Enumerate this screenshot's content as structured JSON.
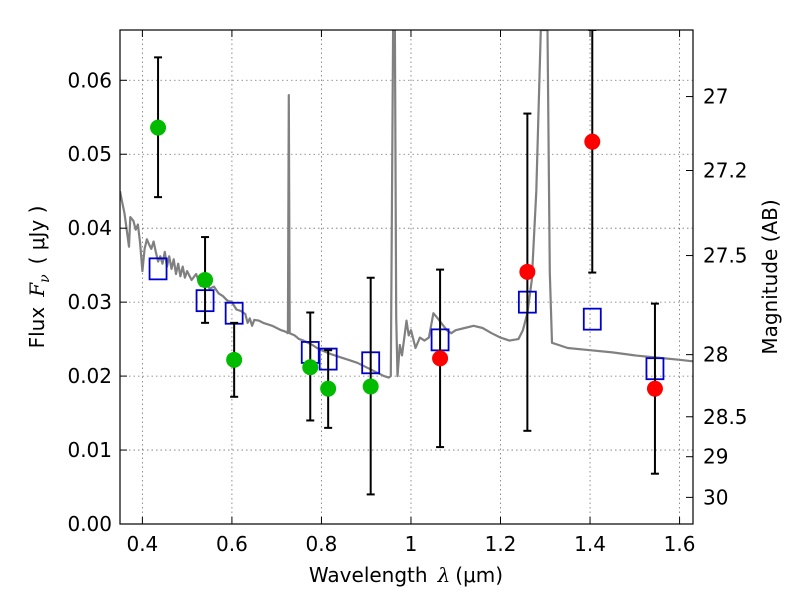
{
  "chart_data": {
    "type": "scatter",
    "title": "",
    "xlabel": "Wavelength",
    "xlabel_symbol": "λ",
    "xlabel_unit": "(μm)",
    "ylabel": "Flux",
    "ylabel_symbol": "F",
    "ylabel_sub": "ν",
    "ylabel_unit": "( μJy )",
    "y2label": "Magnitude (AB)",
    "xlim": [
      0.35,
      1.63
    ],
    "ylim": [
      0.0,
      0.0668
    ],
    "grid": true,
    "x_ticks": [
      0.4,
      0.6,
      0.8,
      1.0,
      1.2,
      1.4,
      1.6
    ],
    "x_tick_labels": [
      "0.4",
      "0.6",
      "0.8",
      "1",
      "1.2",
      "1.4",
      "1.6"
    ],
    "y_ticks": [
      0.0,
      0.01,
      0.02,
      0.03,
      0.04,
      0.05,
      0.06
    ],
    "y_tick_labels": [
      "0.00",
      "0.01",
      "0.02",
      "0.03",
      "0.04",
      "0.05",
      "0.06"
    ],
    "y2_ticks": [
      {
        "label": "27",
        "flux": 0.0578
      },
      {
        "label": "27.2",
        "flux": 0.0478
      },
      {
        "label": "27.5",
        "flux": 0.0363
      },
      {
        "label": "28",
        "flux": 0.0229
      },
      {
        "label": "28.5",
        "flux": 0.0145
      },
      {
        "label": "29",
        "flux": 0.0091
      },
      {
        "label": "30",
        "flux": 0.0036
      }
    ],
    "colors": {
      "model": "#808080",
      "green": "#00bb00",
      "red": "#ff0000",
      "square": "#0000cc",
      "errorbar": "#000000"
    },
    "series": [
      {
        "name": "model spectrum",
        "kind": "line",
        "points": [
          [
            0.35,
            0.045
          ],
          [
            0.355,
            0.0435
          ],
          [
            0.36,
            0.042
          ],
          [
            0.365,
            0.0398
          ],
          [
            0.37,
            0.0375
          ],
          [
            0.373,
            0.0415
          ],
          [
            0.38,
            0.041
          ],
          [
            0.385,
            0.0398
          ],
          [
            0.39,
            0.0405
          ],
          [
            0.395,
            0.038
          ],
          [
            0.4,
            0.0342
          ],
          [
            0.405,
            0.0372
          ],
          [
            0.41,
            0.0385
          ],
          [
            0.415,
            0.0378
          ],
          [
            0.42,
            0.0372
          ],
          [
            0.425,
            0.0382
          ],
          [
            0.43,
            0.0368
          ],
          [
            0.435,
            0.0355
          ],
          [
            0.44,
            0.0362
          ],
          [
            0.445,
            0.0352
          ],
          [
            0.45,
            0.0368
          ],
          [
            0.455,
            0.0348
          ],
          [
            0.46,
            0.0362
          ],
          [
            0.465,
            0.0345
          ],
          [
            0.47,
            0.0358
          ],
          [
            0.475,
            0.0338
          ],
          [
            0.48,
            0.0352
          ],
          [
            0.485,
            0.0335
          ],
          [
            0.49,
            0.0348
          ],
          [
            0.495,
            0.0333
          ],
          [
            0.5,
            0.0342
          ],
          [
            0.51,
            0.033
          ],
          [
            0.52,
            0.0338
          ],
          [
            0.53,
            0.0322
          ],
          [
            0.54,
            0.0331
          ],
          [
            0.55,
            0.0318
          ],
          [
            0.56,
            0.0321
          ],
          [
            0.57,
            0.0312
          ],
          [
            0.58,
            0.0308
          ],
          [
            0.59,
            0.0302
          ],
          [
            0.6,
            0.03
          ],
          [
            0.61,
            0.029
          ],
          [
            0.62,
            0.0288
          ],
          [
            0.63,
            0.0284
          ],
          [
            0.635,
            0.0272
          ],
          [
            0.64,
            0.0278
          ],
          [
            0.645,
            0.0268
          ],
          [
            0.65,
            0.0276
          ],
          [
            0.66,
            0.0275
          ],
          [
            0.67,
            0.0272
          ],
          [
            0.68,
            0.027
          ],
          [
            0.69,
            0.0268
          ],
          [
            0.7,
            0.0265
          ],
          [
            0.71,
            0.0262
          ],
          [
            0.72,
            0.026
          ],
          [
            0.725,
            0.0258
          ],
          [
            0.727,
            0.058
          ],
          [
            0.729,
            0.0258
          ],
          [
            0.74,
            0.0255
          ],
          [
            0.75,
            0.025
          ],
          [
            0.76,
            0.0248
          ],
          [
            0.77,
            0.0245
          ],
          [
            0.78,
            0.0242
          ],
          [
            0.79,
            0.0238
          ],
          [
            0.8,
            0.0235
          ],
          [
            0.82,
            0.023
          ],
          [
            0.84,
            0.0226
          ],
          [
            0.86,
            0.0222
          ],
          [
            0.88,
            0.0218
          ],
          [
            0.9,
            0.0212
          ],
          [
            0.92,
            0.0206
          ],
          [
            0.94,
            0.02
          ],
          [
            0.95,
            0.0198
          ],
          [
            0.955,
            0.02
          ],
          [
            0.96,
            0.0668
          ],
          [
            0.964,
            0.0668
          ],
          [
            0.967,
            0.028
          ],
          [
            0.97,
            0.02
          ],
          [
            0.975,
            0.0242
          ],
          [
            0.98,
            0.0228
          ],
          [
            0.99,
            0.0275
          ],
          [
            0.995,
            0.0255
          ],
          [
            1.0,
            0.0262
          ],
          [
            1.01,
            0.0238
          ],
          [
            1.02,
            0.0252
          ],
          [
            1.03,
            0.0248
          ],
          [
            1.04,
            0.0252
          ],
          [
            1.05,
            0.0285
          ],
          [
            1.06,
            0.0278
          ],
          [
            1.07,
            0.027
          ],
          [
            1.08,
            0.0262
          ],
          [
            1.09,
            0.0258
          ],
          [
            1.1,
            0.0262
          ],
          [
            1.12,
            0.0265
          ],
          [
            1.14,
            0.0268
          ],
          [
            1.16,
            0.0265
          ],
          [
            1.18,
            0.0258
          ],
          [
            1.2,
            0.0252
          ],
          [
            1.22,
            0.0248
          ],
          [
            1.24,
            0.025
          ],
          [
            1.25,
            0.0262
          ],
          [
            1.26,
            0.0285
          ],
          [
            1.27,
            0.033
          ],
          [
            1.28,
            0.045
          ],
          [
            1.29,
            0.0668
          ],
          [
            1.305,
            0.0668
          ],
          [
            1.31,
            0.034
          ],
          [
            1.315,
            0.0245
          ],
          [
            1.33,
            0.0242
          ],
          [
            1.35,
            0.0238
          ],
          [
            1.4,
            0.0235
          ],
          [
            1.45,
            0.0232
          ],
          [
            1.5,
            0.0228
          ],
          [
            1.55,
            0.0225
          ],
          [
            1.6,
            0.0222
          ],
          [
            1.63,
            0.022
          ]
        ]
      },
      {
        "name": "green points",
        "kind": "circle",
        "color": "green",
        "points": [
          {
            "x": 0.435,
            "y": 0.0536,
            "ylo": 0.0442,
            "yhi": 0.0631
          },
          {
            "x": 0.54,
            "y": 0.033,
            "ylo": 0.0272,
            "yhi": 0.0388
          },
          {
            "x": 0.605,
            "y": 0.0222,
            "ylo": 0.0172,
            "yhi": 0.0272
          },
          {
            "x": 0.775,
            "y": 0.0212,
            "ylo": 0.014,
            "yhi": 0.0286
          },
          {
            "x": 0.815,
            "y": 0.0183,
            "ylo": 0.013,
            "yhi": 0.0235
          },
          {
            "x": 0.91,
            "y": 0.0186,
            "ylo": 0.004,
            "yhi": 0.0333
          }
        ]
      },
      {
        "name": "red points",
        "kind": "circle",
        "color": "red",
        "points": [
          {
            "x": 1.065,
            "y": 0.0224,
            "ylo": 0.0104,
            "yhi": 0.0344
          },
          {
            "x": 1.26,
            "y": 0.0341,
            "ylo": 0.0126,
            "yhi": 0.0555
          },
          {
            "x": 1.405,
            "y": 0.0517,
            "ylo": 0.034,
            "yhi": 0.0668
          },
          {
            "x": 1.545,
            "y": 0.0183,
            "ylo": 0.0068,
            "yhi": 0.0298
          }
        ]
      },
      {
        "name": "model photometry",
        "kind": "square",
        "color": "square",
        "points": [
          {
            "x": 0.435,
            "y": 0.0345
          },
          {
            "x": 0.54,
            "y": 0.0302
          },
          {
            "x": 0.605,
            "y": 0.0285
          },
          {
            "x": 0.775,
            "y": 0.0232
          },
          {
            "x": 0.815,
            "y": 0.0223
          },
          {
            "x": 0.91,
            "y": 0.0218
          },
          {
            "x": 1.065,
            "y": 0.0249
          },
          {
            "x": 1.26,
            "y": 0.03
          },
          {
            "x": 1.405,
            "y": 0.0277
          },
          {
            "x": 1.545,
            "y": 0.021
          }
        ]
      }
    ]
  }
}
